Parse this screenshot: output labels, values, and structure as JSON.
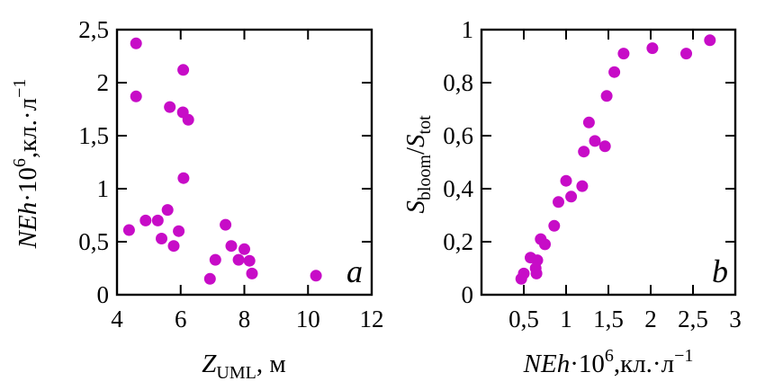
{
  "figure": {
    "background": "#ffffff",
    "dot_color": "#c70cc7",
    "frame_color": "#000000",
    "text_color": "#000000"
  },
  "chart_data": [
    {
      "type": "scatter",
      "panel_label": "a",
      "title": "",
      "xlabel": "Zᵁᴹᴸ, м",
      "xlabel_plain": "Z_UML, м",
      "xlabel_segments": [
        {
          "text": "Z",
          "italic": true
        },
        {
          "text": "UML",
          "sub": true
        },
        {
          "text": ", м"
        }
      ],
      "ylabel_plain": "NEh·10⁶,кл.·л⁻¹",
      "ylabel_segments": [
        {
          "text": "NEh",
          "italic": true
        },
        {
          "text": "·10"
        },
        {
          "text": "6",
          "sup": true
        },
        {
          "text": ",кл.·л"
        },
        {
          "text": "−1",
          "sup": true
        }
      ],
      "xlim": [
        4,
        12
      ],
      "ylim": [
        0,
        2.5
      ],
      "grid": false,
      "legend": null,
      "x_ticks": {
        "values": [
          4,
          6,
          8,
          10,
          12
        ],
        "labels": [
          "4",
          "6",
          "8",
          "10",
          "12"
        ]
      },
      "y_ticks": {
        "values": [
          0,
          0.5,
          1,
          1.5,
          2,
          2.5
        ],
        "labels": [
          "0",
          "0,5",
          "1",
          "1,5",
          "2",
          "2,5"
        ]
      },
      "points": [
        [
          4.6,
          2.37
        ],
        [
          6.08,
          2.12
        ],
        [
          4.6,
          1.87
        ],
        [
          5.66,
          1.77
        ],
        [
          6.07,
          1.72
        ],
        [
          6.24,
          1.65
        ],
        [
          6.09,
          1.1
        ],
        [
          5.59,
          0.8
        ],
        [
          4.9,
          0.7
        ],
        [
          5.28,
          0.7
        ],
        [
          4.38,
          0.61
        ],
        [
          5.94,
          0.6
        ],
        [
          5.4,
          0.53
        ],
        [
          5.78,
          0.46
        ],
        [
          7.41,
          0.66
        ],
        [
          7.59,
          0.46
        ],
        [
          8.0,
          0.43
        ],
        [
          7.09,
          0.33
        ],
        [
          7.82,
          0.33
        ],
        [
          8.16,
          0.32
        ],
        [
          8.24,
          0.2
        ],
        [
          6.92,
          0.15
        ],
        [
          10.25,
          0.18
        ]
      ]
    },
    {
      "type": "scatter",
      "panel_label": "b",
      "title": "",
      "xlabel_plain": "NEh·10⁶,кл.·л⁻¹",
      "xlabel_segments": [
        {
          "text": "NEh",
          "italic": true
        },
        {
          "text": "·10"
        },
        {
          "text": "6",
          "sup": true
        },
        {
          "text": ",кл.·л"
        },
        {
          "text": "−1",
          "sup": true
        }
      ],
      "ylabel_plain": "Sʙʟᴏᴏᴍ/Sᴛᴏᴛ",
      "ylabel_segments": [
        {
          "text": "S",
          "italic": true
        },
        {
          "text": "bloom",
          "sub": true
        },
        {
          "text": "/"
        },
        {
          "text": "S",
          "italic": true
        },
        {
          "text": "tot",
          "sub": true
        }
      ],
      "xlim": [
        0,
        3
      ],
      "ylim": [
        0,
        1
      ],
      "grid": false,
      "legend": null,
      "x_ticks": {
        "values": [
          0.5,
          1,
          1.5,
          2,
          2.5,
          3
        ],
        "labels": [
          "0,5",
          "1",
          "1,5",
          "2",
          "2,5",
          "3"
        ]
      },
      "y_ticks": {
        "values": [
          0,
          0.2,
          0.4,
          0.6,
          0.8,
          1
        ],
        "labels": [
          "0",
          "0,2",
          "0,4",
          "0,6",
          "0,8",
          "1"
        ]
      },
      "points": [
        [
          0.47,
          0.06
        ],
        [
          0.5,
          0.08
        ],
        [
          0.58,
          0.14
        ],
        [
          0.66,
          0.13
        ],
        [
          0.64,
          0.1
        ],
        [
          0.65,
          0.08
        ],
        [
          0.7,
          0.21
        ],
        [
          0.75,
          0.19
        ],
        [
          0.86,
          0.26
        ],
        [
          0.91,
          0.35
        ],
        [
          1.0,
          0.43
        ],
        [
          1.06,
          0.37
        ],
        [
          1.19,
          0.41
        ],
        [
          1.21,
          0.54
        ],
        [
          1.27,
          0.65
        ],
        [
          1.34,
          0.58
        ],
        [
          1.46,
          0.56
        ],
        [
          1.48,
          0.75
        ],
        [
          1.57,
          0.84
        ],
        [
          1.68,
          0.91
        ],
        [
          2.02,
          0.93
        ],
        [
          2.42,
          0.91
        ],
        [
          2.7,
          0.96
        ]
      ]
    }
  ]
}
